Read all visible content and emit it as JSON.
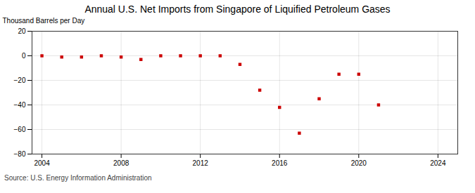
{
  "chart_data": {
    "type": "scatter",
    "title": "Annual U.S. Net Imports from Singapore of Liquified Petroleum Gases",
    "ylabel": "Thousand Barrels per Day",
    "source": "Source: U.S. Energy Information Administration",
    "x": [
      2004,
      2005,
      2006,
      2007,
      2008,
      2009,
      2010,
      2011,
      2012,
      2013,
      2014,
      2015,
      2016,
      2017,
      2018,
      2019,
      2020,
      2021
    ],
    "values": [
      0,
      -1,
      -1,
      0,
      -1,
      -3,
      0,
      0,
      0,
      0,
      -7,
      -28,
      -42,
      -63,
      -35,
      -15,
      -15,
      -40
    ],
    "color": "#cc0000",
    "marker": "square",
    "xlim": [
      2003.5,
      2025
    ],
    "ylim": [
      -80,
      20
    ],
    "xticks": [
      2004,
      2008,
      2012,
      2016,
      2020,
      2024
    ],
    "yticks": [
      -80,
      -60,
      -40,
      -20,
      0,
      20
    ],
    "grid": true
  }
}
